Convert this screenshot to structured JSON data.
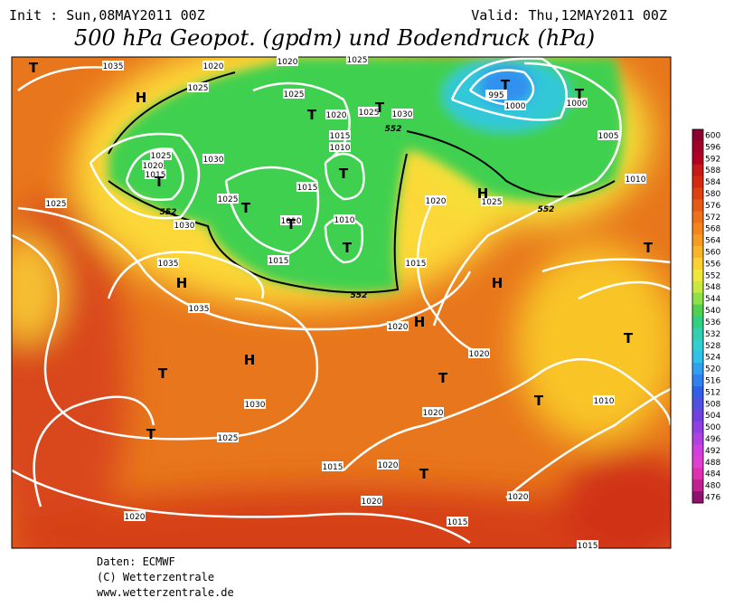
{
  "header": {
    "init": "Init : Sun,08MAY2011 00Z",
    "valid": "Valid: Thu,12MAY2011 00Z",
    "title": "500 hPa Geopot. (gpdm) und Bodendruck (hPa)"
  },
  "map": {
    "isobar_labels": [
      "1035",
      "1020",
      "1020",
      "1025",
      "1025",
      "1025",
      "1020",
      "1025",
      "1030",
      "995",
      "1000",
      "1000",
      "1015",
      "1010",
      "1025",
      "1020",
      "1015",
      "1030",
      "1015",
      "1005",
      "1010",
      "1025",
      "1025",
      "1020",
      "1025",
      "1030",
      "1010",
      "1010",
      "1015",
      "1015",
      "1035",
      "1035",
      "1020",
      "1020",
      "1030",
      "1010",
      "1020",
      "1025",
      "1015",
      "1020",
      "1020",
      "1020",
      "1020",
      "1015",
      "1015"
    ],
    "contour_labels": [
      "552",
      "552",
      "552",
      "552"
    ],
    "pressure_centers": [
      "T",
      "H",
      "T",
      "T",
      "T",
      "T",
      "T",
      "T",
      "T",
      "T",
      "T",
      "H",
      "H",
      "H",
      "H",
      "T",
      "T",
      "H",
      "T",
      "T",
      "T",
      "T",
      "T"
    ]
  },
  "colorbar": {
    "levels": [
      600,
      596,
      592,
      588,
      584,
      580,
      576,
      572,
      568,
      564,
      560,
      556,
      552,
      548,
      544,
      540,
      536,
      532,
      528,
      524,
      520,
      516,
      512,
      508,
      504,
      500,
      496,
      492,
      488,
      484,
      480,
      476
    ],
    "colors": [
      "#8b0030",
      "#a0002a",
      "#b40020",
      "#c81818",
      "#d42a10",
      "#de4010",
      "#e65a14",
      "#ee7018",
      "#f2861c",
      "#f69c20",
      "#fab428",
      "#fcd030",
      "#f0e838",
      "#c8e840",
      "#8ee048",
      "#50d050",
      "#30d080",
      "#30d0b0",
      "#30d0d0",
      "#30c0e8",
      "#30a0f0",
      "#3080f0",
      "#3060e8",
      "#5050e0",
      "#7040e0",
      "#9040e0",
      "#b040e0",
      "#d040e0",
      "#e040d0",
      "#e030b0",
      "#c02090",
      "#901070"
    ]
  },
  "footer": {
    "lines": [
      "Daten: ECMWF",
      "(C) Wetterzentrale",
      "www.wetterzentrale.de"
    ]
  }
}
